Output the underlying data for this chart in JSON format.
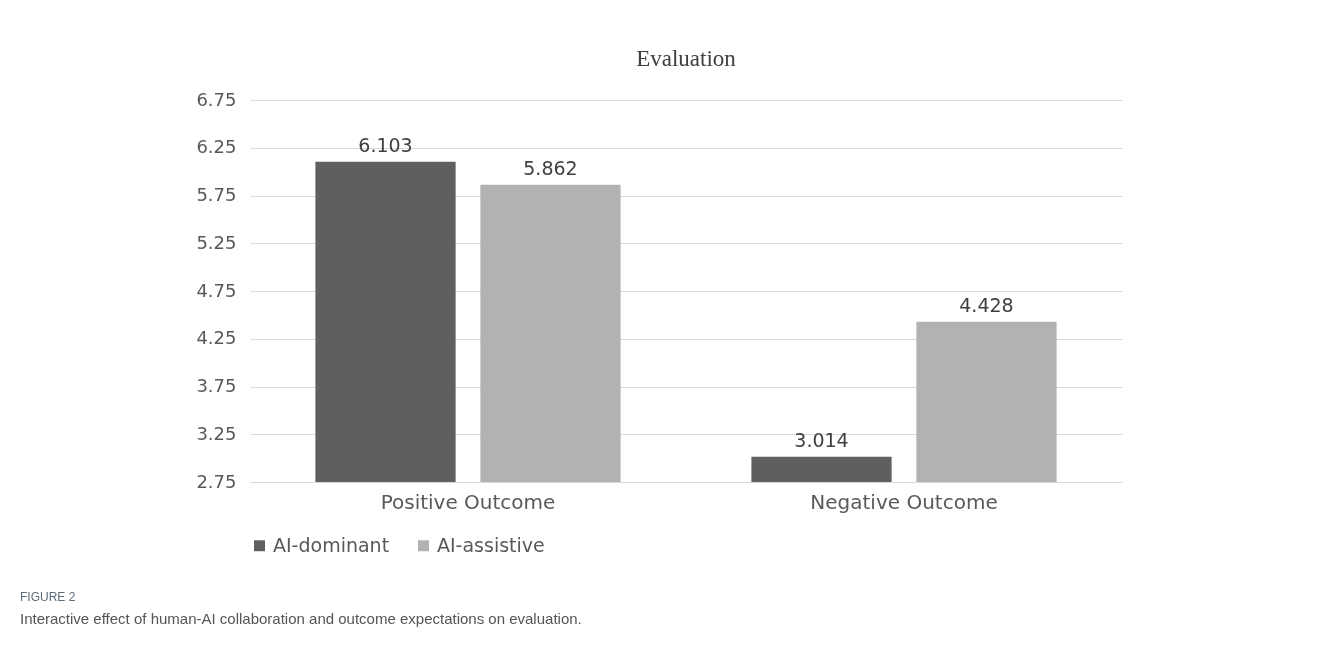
{
  "chart_data": {
    "type": "bar",
    "title": "Evaluation",
    "categories": [
      "Positive Outcome",
      "Negative Outcome"
    ],
    "series": [
      {
        "name": "AI-dominant",
        "color": "#5f5f5f",
        "values": [
          6.103,
          3.014
        ]
      },
      {
        "name": "AI-assistive",
        "color": "#b2b2b2",
        "values": [
          5.862,
          4.428
        ]
      }
    ],
    "ylim": [
      2.75,
      6.75
    ],
    "yticks": [
      2.75,
      3.25,
      3.75,
      4.25,
      4.75,
      5.25,
      5.75,
      6.25,
      6.75
    ],
    "grid": "y",
    "legend": "bottom",
    "data_labels": true,
    "annotations": [
      "FIGURE 2",
      "Interactive effect of human-AI collaboration and outcome expectations on evaluation."
    ]
  }
}
